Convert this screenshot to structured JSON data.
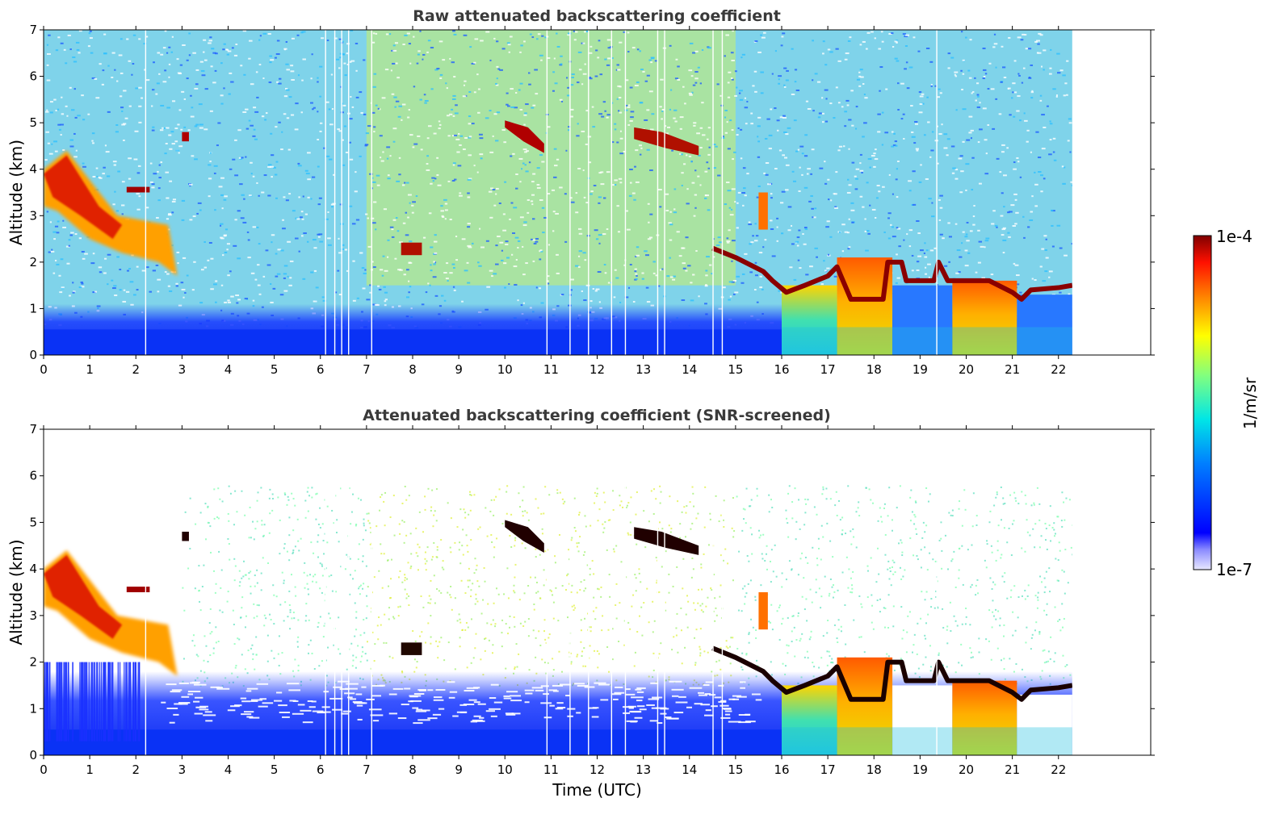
{
  "chart_data": [
    {
      "type": "heatmap",
      "title": "Raw attenuated backscattering coefficient",
      "xlabel": "",
      "ylabel": "Altitude (km)",
      "xlim": [
        0,
        24
      ],
      "ylim": [
        0,
        7
      ],
      "xticks": [
        "0",
        "1",
        "2",
        "3",
        "4",
        "5",
        "6",
        "7",
        "8",
        "9",
        "10",
        "11",
        "12",
        "13",
        "14",
        "15",
        "16",
        "17",
        "18",
        "19",
        "20",
        "21",
        "22"
      ],
      "yticks": [
        "0",
        "1",
        "2",
        "3",
        "4",
        "5",
        "6",
        "7"
      ],
      "data_end_time": 22.3,
      "features": [
        {
          "kind": "cloud_layer",
          "time": [
            0.0,
            2.9
          ],
          "altitude": [
            2.3,
            4.4
          ],
          "level": "high"
        },
        {
          "kind": "cloud_layer",
          "time": [
            7.8,
            8.2
          ],
          "altitude": [
            2.2,
            2.4
          ],
          "level": "high"
        },
        {
          "kind": "cloud_layer",
          "time": [
            10.0,
            10.8
          ],
          "altitude": [
            4.5,
            5.0
          ],
          "level": "high"
        },
        {
          "kind": "cloud_layer",
          "time": [
            12.8,
            14.2
          ],
          "altitude": [
            4.4,
            4.9
          ],
          "level": "high"
        },
        {
          "kind": "cloud_base",
          "time": [
            14.5,
            22.3
          ],
          "altitude": [
            1.2,
            2.3
          ],
          "level": "very high"
        },
        {
          "kind": "precipitation",
          "time": [
            16.0,
            22.3
          ],
          "altitude": [
            0,
            1.5
          ],
          "level": "medium-high"
        },
        {
          "kind": "boundary_layer",
          "time": [
            0,
            22.3
          ],
          "altitude": [
            0,
            0.6
          ],
          "level": "low"
        }
      ]
    },
    {
      "type": "heatmap",
      "title": "Attenuated backscattering coefficient (SNR-screened)",
      "xlabel": "Time (UTC)",
      "ylabel": "Altitude (km)",
      "xlim": [
        0,
        24
      ],
      "ylim": [
        0,
        7
      ],
      "xticks": [
        "0",
        "1",
        "2",
        "3",
        "4",
        "5",
        "6",
        "7",
        "8",
        "9",
        "10",
        "11",
        "12",
        "13",
        "14",
        "15",
        "16",
        "17",
        "18",
        "19",
        "20",
        "21",
        "22"
      ],
      "yticks": [
        "0",
        "1",
        "2",
        "3",
        "4",
        "5",
        "6",
        "7"
      ],
      "data_end_time": 22.3,
      "features": [
        {
          "kind": "cloud_layer",
          "time": [
            0.0,
            2.9
          ],
          "altitude": [
            2.3,
            4.4
          ],
          "level": "high"
        },
        {
          "kind": "cloud_layer",
          "time": [
            7.8,
            8.2
          ],
          "altitude": [
            2.2,
            2.4
          ],
          "level": "very high"
        },
        {
          "kind": "cloud_layer",
          "time": [
            10.0,
            10.8
          ],
          "altitude": [
            4.5,
            5.0
          ],
          "level": "very high"
        },
        {
          "kind": "cloud_layer",
          "time": [
            12.8,
            14.2
          ],
          "altitude": [
            4.4,
            4.9
          ],
          "level": "very high"
        },
        {
          "kind": "cloud_base",
          "time": [
            14.5,
            22.3
          ],
          "altitude": [
            1.2,
            2.3
          ],
          "level": "very high"
        },
        {
          "kind": "precipitation",
          "time": [
            16.0,
            22.3
          ],
          "altitude": [
            0,
            1.5
          ],
          "level": "medium-high"
        },
        {
          "kind": "boundary_layer",
          "time": [
            0,
            22.3
          ],
          "altitude": [
            0,
            1.8
          ],
          "level": "low"
        }
      ]
    }
  ],
  "colorbar": {
    "label": "1/m/sr",
    "max_label": "1e-4",
    "min_label": "1e-7",
    "scale": "log",
    "colormap": "jet"
  }
}
